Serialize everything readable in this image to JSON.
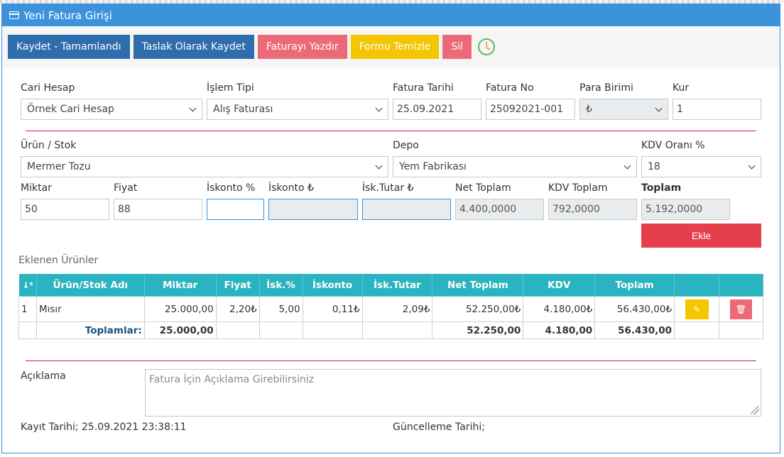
{
  "panel": {
    "title": "Yeni Fatura Girişi"
  },
  "toolbar": {
    "save_complete": "Kaydet - Tamamlandı",
    "save_draft": "Taslak Olarak Kaydet",
    "print": "Faturayı Yazdır",
    "clear": "Formu Temizle",
    "delete": "Sil"
  },
  "form": {
    "cari_hesap": {
      "label": "Cari Hesap",
      "value": "Örnek Cari Hesap"
    },
    "islem_tipi": {
      "label": "İşlem Tipi",
      "value": "Alış Faturası"
    },
    "fatura_tarihi": {
      "label": "Fatura Tarihi",
      "value": "25.09.2021"
    },
    "fatura_no": {
      "label": "Fatura No",
      "value": "25092021-001"
    },
    "para_birimi": {
      "label": "Para Birimi",
      "value": "₺"
    },
    "kur": {
      "label": "Kur",
      "value": "1"
    },
    "urun_stok": {
      "label": "Ürün / Stok",
      "value": "Mermer Tozu"
    },
    "depo": {
      "label": "Depo",
      "value": "Yem Fabrikası"
    },
    "kdv_orani": {
      "label": "KDV Oranı %",
      "value": "18"
    },
    "miktar": {
      "label": "Miktar",
      "value": "50"
    },
    "fiyat": {
      "label": "Fiyat",
      "value": "88"
    },
    "iskonto_pct": {
      "label": "İskonto %",
      "value": ""
    },
    "iskonto_tl": {
      "label": "İskonto ₺",
      "value": ""
    },
    "isk_tutar": {
      "label": "İsk.Tutar ₺",
      "value": ""
    },
    "net_toplam": {
      "label": "Net Toplam",
      "value": "4.400,0000"
    },
    "kdv_toplam": {
      "label": "KDV Toplam",
      "value": "792,0000"
    },
    "toplam": {
      "label": "Toplam",
      "value": "5.192,0000"
    },
    "add_button": "Ekle"
  },
  "products": {
    "title": "Eklenen Ürünler",
    "columns": [
      "Ürün/Stok Adı",
      "Miktar",
      "Fiyat",
      "İsk.%",
      "İskonto",
      "İsk.Tutar",
      "Net Toplam",
      "KDV",
      "Toplam"
    ],
    "rows": [
      {
        "no": "1",
        "name": "Mısır",
        "miktar": "25.000,00",
        "fiyat": "2,20₺",
        "isk_pct": "5,00",
        "iskonto": "0,11₺",
        "isk_tutar": "2,09₺",
        "net": "52.250,00₺",
        "kdv": "4.180,00₺",
        "toplam": "56.430,00₺"
      }
    ],
    "totals": {
      "label": "Toplamlar:",
      "miktar": "25.000,00",
      "net": "52.250,00",
      "kdv": "4.180,00",
      "toplam": "56.430,00"
    }
  },
  "aciklama": {
    "label": "Açıklama",
    "placeholder": "Fatura İçin Açıklama Girebilirsiniz"
  },
  "footer": {
    "kayit": "Kayıt Tarihi; 25.09.2021 23:38:11",
    "guncelleme": "Güncelleme Tarihi;"
  },
  "icons": {
    "header": "credit-card-icon",
    "clock": "clock-icon",
    "sort": "sort-numeric-icon",
    "edit": "edit-icon",
    "trash": "trash-icon"
  },
  "colors": {
    "header_blue": "#3c93dc",
    "primary": "#2f6dad",
    "danger_light": "#ec6a78",
    "warning": "#f3c600",
    "danger": "#e63f4c",
    "table_header": "#2ab3c0"
  }
}
